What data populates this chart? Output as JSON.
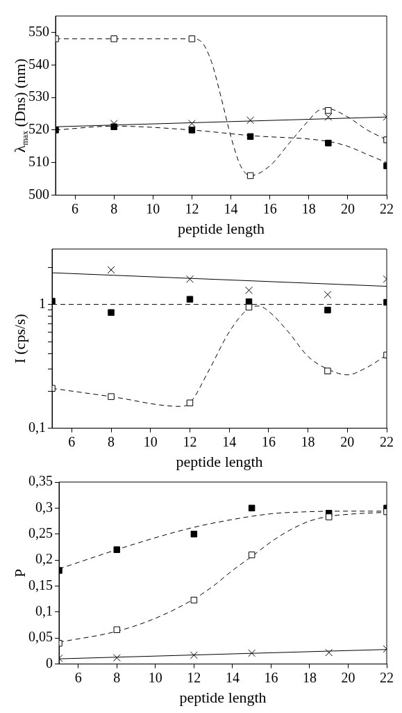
{
  "chart_data": [
    {
      "type": "scatter",
      "xlabel": "peptide length",
      "ylabel": "λ$_{max}$ (Dns) (nm)",
      "xlim": [
        5,
        22
      ],
      "xticks": [
        6,
        8,
        10,
        12,
        14,
        16,
        18,
        20,
        22
      ],
      "ylim": [
        500,
        555
      ],
      "yticks": [
        500,
        510,
        520,
        530,
        540,
        550
      ],
      "grid": false,
      "legend": false,
      "x": [
        5,
        8,
        12,
        15,
        19,
        22
      ],
      "series": [
        {
          "type": "scatter",
          "marker": "square",
          "color": "#ffffff",
          "values": [
            548,
            548,
            548,
            506,
            526,
            517
          ]
        },
        {
          "type": "scatter",
          "marker": "square",
          "color": "#000000",
          "values": [
            520,
            521,
            520,
            518,
            516,
            509
          ]
        },
        {
          "type": "scatter",
          "marker": "cross",
          "color": "#000000",
          "values": [
            null,
            522,
            522,
            523,
            524,
            524
          ]
        },
        {
          "type": "line",
          "marker": "none",
          "line_style": "dashed",
          "color": "#000000",
          "x": [
            5,
            8,
            12,
            12.5,
            13,
            13.5,
            14,
            14.5,
            15,
            16,
            17,
            18,
            18.5,
            19,
            20,
            21,
            22
          ],
          "values": [
            548,
            548,
            548,
            547,
            541,
            530,
            518,
            509,
            506,
            509,
            516,
            523,
            526,
            526.5,
            524,
            520,
            517
          ]
        },
        {
          "type": "line",
          "marker": "none",
          "line_style": "dashed",
          "color": "#000000",
          "x": [
            5,
            8,
            12,
            15,
            19,
            20,
            21,
            22
          ],
          "values": [
            520,
            521.2,
            520,
            518.3,
            516.5,
            515,
            512.5,
            510
          ]
        },
        {
          "type": "line",
          "marker": "none",
          "line_style": "solid",
          "color": "#000000",
          "x": [
            5,
            22
          ],
          "values": [
            521,
            524
          ]
        }
      ]
    },
    {
      "type": "scatter",
      "xlabel": "peptide length",
      "ylabel": "I (cps/s)",
      "log": "y",
      "xlim": [
        5,
        22
      ],
      "xticks": [
        6,
        8,
        10,
        12,
        14,
        16,
        18,
        20,
        22
      ],
      "ylim": [
        0.1,
        2.8
      ],
      "yticks": [
        {
          "value": 0.1,
          "label": "0,1"
        },
        {
          "value": 0.2,
          "label": null
        },
        {
          "value": 0.3,
          "label": null
        },
        {
          "value": 0.4,
          "label": null
        },
        {
          "value": 0.5,
          "label": null
        },
        {
          "value": 0.6,
          "label": null
        },
        {
          "value": 0.7,
          "label": null
        },
        {
          "value": 0.8,
          "label": null
        },
        {
          "value": 0.9,
          "label": null
        },
        1,
        {
          "value": 2,
          "label": null
        }
      ],
      "grid": false,
      "legend": false,
      "x": [
        5,
        8,
        12,
        15,
        19,
        22
      ],
      "series": [
        {
          "type": "scatter",
          "marker": "square",
          "color": "#ffffff",
          "values": [
            0.21,
            0.18,
            0.16,
            0.95,
            0.29,
            0.39
          ]
        },
        {
          "type": "scatter",
          "marker": "square",
          "color": "#000000",
          "values": [
            1.06,
            0.86,
            1.1,
            1.05,
            0.9,
            1.04
          ]
        },
        {
          "type": "scatter",
          "marker": "cross",
          "color": "#000000",
          "values": [
            null,
            1.9,
            1.6,
            1.3,
            1.2,
            1.6
          ]
        },
        {
          "type": "line",
          "marker": "none",
          "line_style": "dashed",
          "color": "#000000",
          "x": [
            5,
            8,
            11.5,
            12,
            13,
            14,
            15,
            15.5,
            16,
            17,
            18,
            19,
            20,
            21,
            22
          ],
          "values": [
            0.21,
            0.18,
            0.15,
            0.16,
            0.3,
            0.6,
            0.93,
            0.97,
            0.88,
            0.6,
            0.38,
            0.3,
            0.27,
            0.31,
            0.39
          ]
        },
        {
          "type": "line",
          "marker": "none",
          "line_style": "dashed",
          "color": "#000000",
          "x": [
            5,
            22
          ],
          "values": [
            1,
            1
          ]
        },
        {
          "type": "line",
          "marker": "none",
          "line_style": "solid",
          "color": "#000000",
          "x": [
            5,
            22
          ],
          "values": [
            1.8,
            1.4
          ]
        }
      ]
    },
    {
      "type": "scatter",
      "xlabel": "peptide length",
      "ylabel": "P",
      "xlim": [
        5,
        22
      ],
      "xticks": [
        6,
        8,
        10,
        12,
        14,
        16,
        18,
        20,
        22
      ],
      "ylim": [
        0,
        0.35
      ],
      "yticks": [
        0,
        {
          "value": 0.05,
          "label": "0,05"
        },
        {
          "value": 0.1,
          "label": "0,1"
        },
        {
          "value": 0.15,
          "label": "0,15"
        },
        {
          "value": 0.2,
          "label": "0,2"
        },
        {
          "value": 0.25,
          "label": "0,25"
        },
        {
          "value": 0.3,
          "label": "0,3"
        },
        {
          "value": 0.35,
          "label": "0,35"
        }
      ],
      "grid": false,
      "legend": false,
      "x": [
        5,
        8,
        12,
        15,
        19,
        22
      ],
      "series": [
        {
          "type": "scatter",
          "marker": "square",
          "color": "#ffffff",
          "values": [
            0.04,
            0.066,
            0.123,
            0.21,
            0.283,
            0.293
          ]
        },
        {
          "type": "scatter",
          "marker": "square",
          "color": "#000000",
          "values": [
            0.18,
            0.22,
            0.25,
            0.3,
            0.29,
            0.3
          ]
        },
        {
          "type": "scatter",
          "marker": "cross",
          "color": "#000000",
          "values": [
            0.011,
            0.012,
            0.017,
            0.021,
            0.022,
            0.029
          ]
        },
        {
          "type": "line",
          "marker": "none",
          "line_style": "dashed",
          "color": "#000000",
          "x": [
            5,
            8,
            10,
            12,
            13,
            14,
            15,
            16,
            17,
            18,
            19,
            20,
            22
          ],
          "values": [
            0.042,
            0.063,
            0.088,
            0.125,
            0.15,
            0.18,
            0.207,
            0.235,
            0.258,
            0.275,
            0.284,
            0.288,
            0.292
          ]
        },
        {
          "type": "line",
          "marker": "none",
          "line_style": "dashed",
          "color": "#000000",
          "x": [
            5,
            8,
            10,
            12,
            14,
            16,
            18,
            20,
            22
          ],
          "values": [
            0.183,
            0.22,
            0.243,
            0.263,
            0.278,
            0.289,
            0.293,
            0.294,
            0.294
          ]
        },
        {
          "type": "line",
          "marker": "none",
          "line_style": "solid",
          "color": "#000000",
          "x": [
            5,
            22
          ],
          "values": [
            0.01,
            0.028
          ]
        }
      ]
    }
  ]
}
